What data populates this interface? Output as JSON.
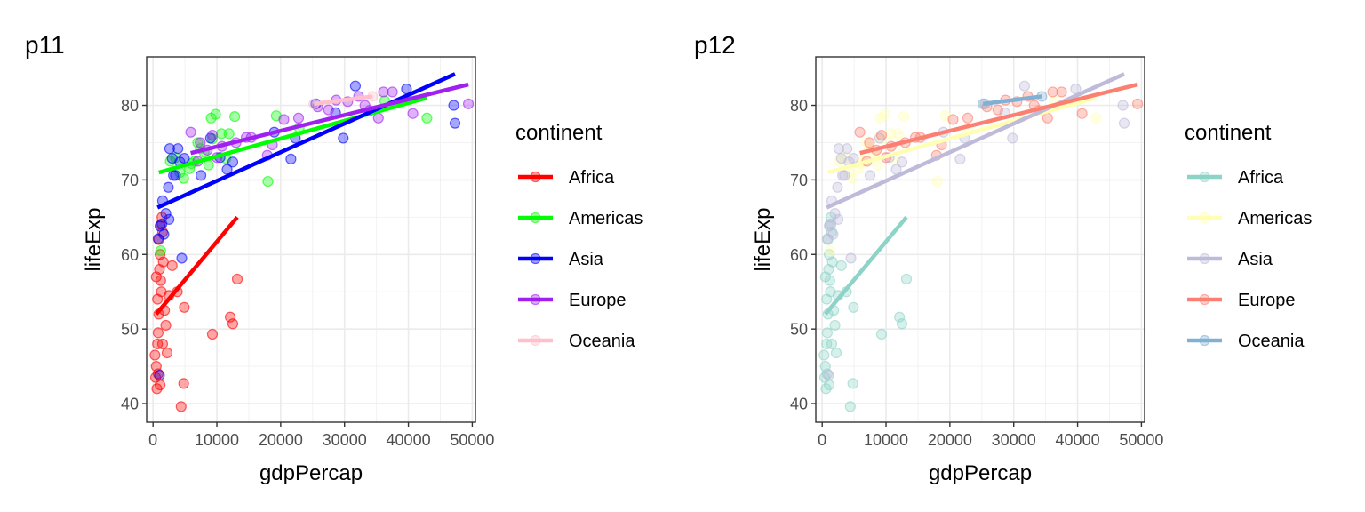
{
  "panels": [
    {
      "title": "p11",
      "xlabel": "gdpPercap",
      "ylabel": "lifeExp",
      "legend_title": "continent",
      "palette": {
        "Africa": "#ff0000",
        "Americas": "#00ff00",
        "Asia": "#0000ff",
        "Europe": "#a020f0",
        "Oceania": "#ffc0cb"
      }
    },
    {
      "title": "p12",
      "xlabel": "gdpPercap",
      "ylabel": "lifeExp",
      "legend_title": "continent",
      "palette": {
        "Africa": "#8dd3c7",
        "Americas": "#ffffb3",
        "Asia": "#bebada",
        "Europe": "#fb8072",
        "Oceania": "#80b1d3"
      }
    }
  ],
  "chart_data": {
    "type": "scatter",
    "xlim": [
      -1000,
      50500
    ],
    "ylim": [
      37.5,
      86.5
    ],
    "x_ticks": [
      0,
      10000,
      20000,
      30000,
      40000,
      50000
    ],
    "y_ticks": [
      40,
      50,
      60,
      70,
      80
    ],
    "grid": true,
    "legend_placement": "right",
    "categories": [
      "Africa",
      "Americas",
      "Asia",
      "Europe",
      "Oceania"
    ],
    "series": [
      {
        "name": "Africa",
        "points": [
          [
            300,
            46.5
          ],
          [
            400,
            43.5
          ],
          [
            500,
            45.0
          ],
          [
            600,
            42.0
          ],
          [
            700,
            48.0
          ],
          [
            800,
            49.5
          ],
          [
            900,
            52.0
          ],
          [
            1000,
            58.0
          ],
          [
            1100,
            60.0
          ],
          [
            1200,
            56.5
          ],
          [
            1300,
            55.0
          ],
          [
            1500,
            63.0
          ],
          [
            1600,
            59.0
          ],
          [
            1800,
            52.5
          ],
          [
            2000,
            50.5
          ],
          [
            2200,
            46.8
          ],
          [
            2500,
            54.5
          ],
          [
            3000,
            58.5
          ],
          [
            3800,
            55.0
          ],
          [
            4400,
            39.6
          ],
          [
            4800,
            42.7
          ],
          [
            4900,
            52.9
          ],
          [
            9300,
            49.3
          ],
          [
            12100,
            51.6
          ],
          [
            12500,
            50.7
          ],
          [
            13200,
            56.7
          ],
          [
            500,
            57.0
          ],
          [
            700,
            54.0
          ],
          [
            900,
            62.0
          ],
          [
            1200,
            64.0
          ],
          [
            1500,
            48.0
          ],
          [
            800,
            44.0
          ],
          [
            1100,
            42.5
          ],
          [
            1400,
            65.0
          ]
        ],
        "fit": [
          [
            500,
            52.0
          ],
          [
            13200,
            65.0
          ]
        ]
      },
      {
        "name": "Americas",
        "points": [
          [
            1200,
            60.5
          ],
          [
            2700,
            72.5
          ],
          [
            3500,
            73.0
          ],
          [
            4200,
            71.0
          ],
          [
            4800,
            70.2
          ],
          [
            5700,
            71.5
          ],
          [
            6500,
            72.5
          ],
          [
            7000,
            75.0
          ],
          [
            7400,
            74.2
          ],
          [
            8700,
            72.0
          ],
          [
            9100,
            78.3
          ],
          [
            9300,
            75.5
          ],
          [
            9800,
            78.8
          ],
          [
            10700,
            76.2
          ],
          [
            11400,
            72.9
          ],
          [
            11900,
            76.2
          ],
          [
            12800,
            78.5
          ],
          [
            18000,
            69.8
          ],
          [
            19300,
            78.6
          ],
          [
            22900,
            77.0
          ],
          [
            36300,
            80.6
          ],
          [
            42900,
            78.3
          ],
          [
            8000,
            73.7
          ],
          [
            6000,
            72.2
          ]
        ],
        "fit": [
          [
            900,
            71.0
          ],
          [
            42900,
            81.0
          ]
        ]
      },
      {
        "name": "Asia",
        "points": [
          [
            1000,
            43.8
          ],
          [
            800,
            62.1
          ],
          [
            1100,
            63.8
          ],
          [
            1400,
            64.1
          ],
          [
            1700,
            62.7
          ],
          [
            2000,
            65.5
          ],
          [
            2500,
            64.7
          ],
          [
            2600,
            74.2
          ],
          [
            3000,
            72.9
          ],
          [
            3500,
            70.6
          ],
          [
            3900,
            74.2
          ],
          [
            4200,
            72.4
          ],
          [
            4500,
            59.5
          ],
          [
            4900,
            72.9
          ],
          [
            1500,
            67.2
          ],
          [
            2400,
            69.0
          ],
          [
            7500,
            70.6
          ],
          [
            9000,
            75.6
          ],
          [
            10500,
            73.0
          ],
          [
            11600,
            71.4
          ],
          [
            12500,
            72.4
          ],
          [
            19000,
            76.4
          ],
          [
            21600,
            72.8
          ],
          [
            22300,
            75.6
          ],
          [
            25500,
            80.2
          ],
          [
            28600,
            79.0
          ],
          [
            29800,
            75.6
          ],
          [
            31700,
            82.6
          ],
          [
            39700,
            82.2
          ],
          [
            47100,
            80.0
          ],
          [
            47300,
            77.6
          ],
          [
            3200,
            70.6
          ]
        ],
        "fit": [
          [
            700,
            66.3
          ],
          [
            47300,
            84.2
          ]
        ]
      },
      {
        "name": "Europe",
        "points": [
          [
            5900,
            76.4
          ],
          [
            7400,
            75.0
          ],
          [
            8500,
            74.0
          ],
          [
            9300,
            76.0
          ],
          [
            10000,
            73.0
          ],
          [
            10800,
            74.5
          ],
          [
            13000,
            75.0
          ],
          [
            14600,
            75.7
          ],
          [
            15400,
            75.7
          ],
          [
            17900,
            73.3
          ],
          [
            18700,
            74.7
          ],
          [
            20500,
            78.1
          ],
          [
            22800,
            78.3
          ],
          [
            25800,
            79.8
          ],
          [
            27500,
            79.4
          ],
          [
            28700,
            80.7
          ],
          [
            30500,
            80.5
          ],
          [
            32200,
            81.2
          ],
          [
            33200,
            80.0
          ],
          [
            33900,
            79.3
          ],
          [
            35300,
            78.3
          ],
          [
            36100,
            81.8
          ],
          [
            37500,
            81.8
          ],
          [
            40700,
            78.9
          ],
          [
            49400,
            80.2
          ],
          [
            7000,
            72.5
          ]
        ],
        "fit": [
          [
            5900,
            73.6
          ],
          [
            49400,
            82.8
          ]
        ]
      },
      {
        "name": "Oceania",
        "points": [
          [
            25200,
            80.2
          ],
          [
            34400,
            81.2
          ]
        ],
        "fit": [
          [
            25200,
            80.2
          ],
          [
            34400,
            81.2
          ]
        ]
      }
    ]
  }
}
